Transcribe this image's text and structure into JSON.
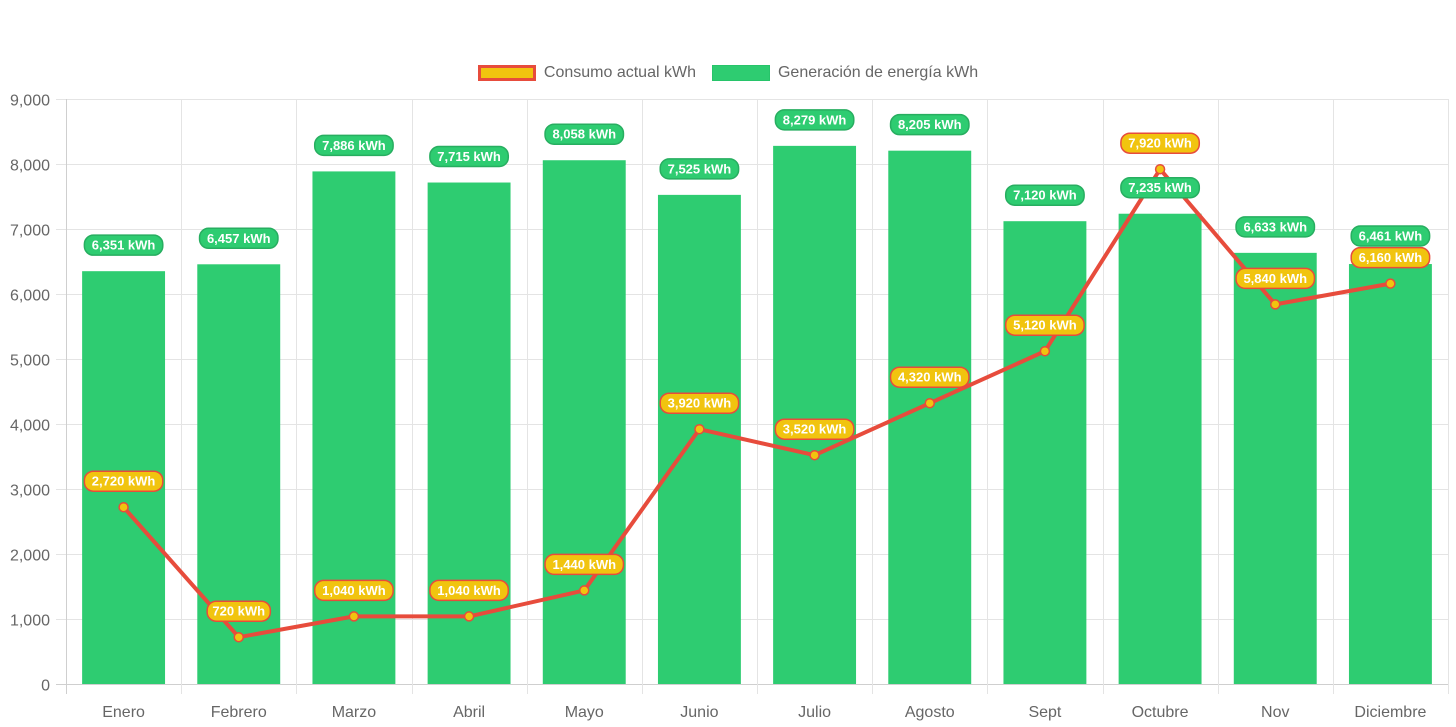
{
  "chart_data": {
    "type": "bar",
    "title": "",
    "xlabel": "",
    "ylabel": "",
    "ylim": [
      0,
      9000
    ],
    "y_ticks": [
      0,
      1000,
      2000,
      3000,
      4000,
      5000,
      6000,
      7000,
      8000,
      9000
    ],
    "y_tick_labels": [
      "0",
      "1,000",
      "2,000",
      "3,000",
      "4,000",
      "5,000",
      "6,000",
      "7,000",
      "8,000",
      "9,000"
    ],
    "grid": true,
    "legend_position": "top-center",
    "categories": [
      "Enero",
      "Febrero",
      "Marzo",
      "Abril",
      "Mayo",
      "Junio",
      "Julio",
      "Agosto",
      "Sept",
      "Octubre",
      "Nov",
      "Diciembre"
    ],
    "series": [
      {
        "name": "Consumo actual kWh",
        "type": "line",
        "color": "#e74c3c",
        "point_color": "#f1c40f",
        "values": [
          2720,
          720,
          1040,
          1040,
          1440,
          3920,
          3520,
          4320,
          5120,
          7920,
          5840,
          6160
        ],
        "labels": [
          "2,720 kWh",
          "720 kWh",
          "1,040 kWh",
          "1,040 kWh",
          "1,440 kWh",
          "3,920 kWh",
          "3,520 kWh",
          "4,320 kWh",
          "5,120 kWh",
          "7,920 kWh",
          "5,840 kWh",
          "6,160 kWh"
        ]
      },
      {
        "name": "Generación de energía kWh",
        "type": "bar",
        "color": "#2ecc71",
        "values": [
          6351,
          6457,
          7886,
          7715,
          8058,
          7525,
          8279,
          8205,
          7120,
          7235,
          6633,
          6461
        ],
        "labels": [
          "6,351 kWh",
          "6,457 kWh",
          "7,886 kWh",
          "7,715 kWh",
          "8,058 kWh",
          "7,525 kWh",
          "8,279 kWh",
          "8,205 kWh",
          "7,120 kWh",
          "7,235 kWh",
          "6,633 kWh",
          "6,461 kWh"
        ]
      }
    ]
  },
  "legend": {
    "items": [
      {
        "label": "Consumo actual kWh"
      },
      {
        "label": "Generación de energía kWh"
      }
    ]
  }
}
